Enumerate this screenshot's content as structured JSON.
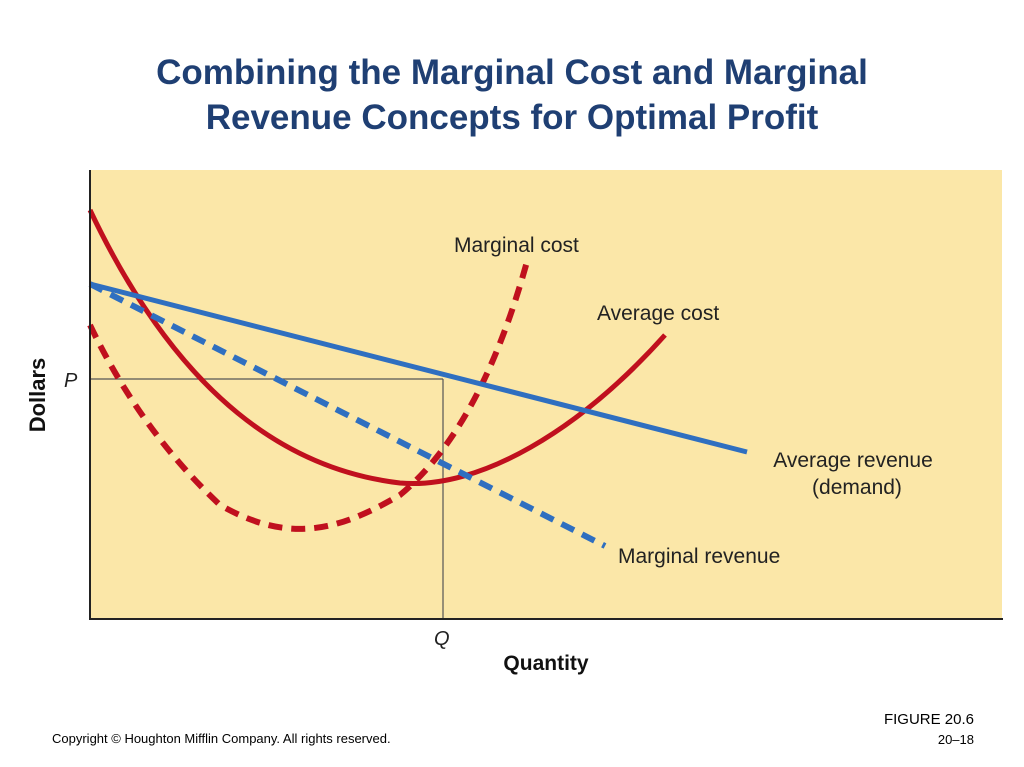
{
  "slide": {
    "title_line1": "Combining the Marginal Cost and Marginal",
    "title_line2": "Revenue Concepts for Optimal Profit",
    "copyright": "Copyright © Houghton Mifflin Company. All rights reserved.",
    "figure": "FIGURE 20.6",
    "page": "20–18"
  },
  "diagram": {
    "y_axis_label": "Dollars",
    "x_axis_label": "Quantity",
    "price_label": "P",
    "quantity_label": "Q",
    "curves": {
      "marginal_cost": {
        "label": "Marginal cost",
        "color": "#c0101e",
        "style": "dashed"
      },
      "average_cost": {
        "label": "Average cost",
        "color": "#c0101e",
        "style": "solid"
      },
      "average_revenue": {
        "label_line1": "Average revenue",
        "label_line2": "(demand)",
        "color": "#2f6fc0",
        "style": "solid"
      },
      "marginal_revenue": {
        "label": "Marginal revenue",
        "color": "#2f6fc0",
        "style": "dashed"
      }
    },
    "background_color": "#fbe7a8"
  }
}
